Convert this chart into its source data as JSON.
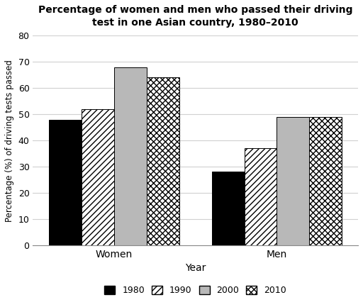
{
  "title_line1": "Percentage of women and men who passed their driving",
  "title_line2": "test in one Asian country, 1980–2010",
  "xlabel": "Year",
  "ylabel": "Percentage (%) of driving tests passed",
  "categories": [
    "Women",
    "Men"
  ],
  "years": [
    "1980",
    "1990",
    "2000",
    "2010"
  ],
  "values": {
    "Women": [
      48,
      52,
      68,
      64
    ],
    "Men": [
      28,
      37,
      49,
      49
    ]
  },
  "ylim": [
    0,
    80
  ],
  "yticks": [
    0,
    10,
    20,
    30,
    40,
    50,
    60,
    70,
    80
  ],
  "bar_width": 0.12,
  "group_centers": [
    0.3,
    0.9
  ],
  "xlim": [
    0.0,
    1.2
  ],
  "background_color": "#ffffff",
  "grid_color": "#d0d0d0",
  "hatch_1990": "////",
  "hatch_2010": "xxxx",
  "color_1980": "#000000",
  "color_1990_face": "#ffffff",
  "color_2000": "#b8b8b8",
  "color_2010_face": "#ffffff"
}
